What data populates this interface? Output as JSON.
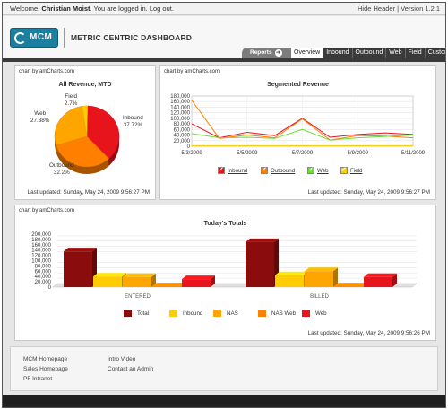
{
  "topbar": {
    "welcome_prefix": "Welcome,",
    "user_name": "Christian Moist",
    "welcome_suffix": ". You are logged in.",
    "logout": "Log out.",
    "hide_header": "Hide Header",
    "version": "Version 1.2.1"
  },
  "header": {
    "logo_text": "MCM",
    "title": "METRIC CENTRIC DASHBOARD",
    "reports_label": "Reports",
    "tabs": [
      "Overview",
      "Inbound",
      "Outbound",
      "Web",
      "Field",
      "Customer"
    ]
  },
  "panels": {
    "credit": "chart by amCharts.com",
    "updated1": "Last updated: Sunday, May 24, 2009 9:56:27 PM",
    "updated2": "Last updated: Sunday, May 24, 2009 9:56:27 PM",
    "updated3": "Last updated: Sunday, May 24, 2009 9:56:26 PM"
  },
  "colors": {
    "inbound": "#e8141c",
    "outbound": "#ff7f00",
    "web": "#66dd33",
    "field": "#ffcc00",
    "total": "#8b0c0c",
    "nas": "#ffa500"
  },
  "chart_data": [
    {
      "type": "pie",
      "title": "All Revenue, MTD",
      "slices": [
        {
          "label": "Inbound",
          "pct": "37.72%",
          "value": 37.72
        },
        {
          "label": "Outbound",
          "pct": "32.2%",
          "value": 32.2
        },
        {
          "label": "Web",
          "pct": "27.38%",
          "value": 27.38
        },
        {
          "label": "Field",
          "pct": "2.7%",
          "value": 2.7
        }
      ]
    },
    {
      "type": "line",
      "title": "Segmented Revenue",
      "x_ticks": [
        "5/3/2009",
        "5/5/2009",
        "5/7/2009",
        "5/9/2009",
        "5/11/2009"
      ],
      "y_ticks": [
        "180,000",
        "160,000",
        "140,000",
        "120,000",
        "100,000",
        "80,000",
        "60,000",
        "40,000",
        "20,000",
        "0"
      ],
      "ylim": [
        0,
        180000
      ],
      "x": [
        0,
        1,
        2,
        3,
        4,
        5,
        6,
        7,
        8
      ],
      "series": [
        {
          "name": "Inbound",
          "values": [
            80000,
            30000,
            50000,
            38000,
            100000,
            32000,
            42000,
            48000,
            42000
          ]
        },
        {
          "name": "Outbound",
          "values": [
            165000,
            28000,
            40000,
            30000,
            98000,
            22000,
            38000,
            36000,
            30000
          ]
        },
        {
          "name": "Web",
          "values": [
            45000,
            30000,
            32000,
            28000,
            60000,
            22000,
            30000,
            35000,
            40000
          ]
        },
        {
          "name": "Field",
          "values": [
            2000,
            2000,
            2000,
            2000,
            2000,
            2000,
            2000,
            2000,
            2000
          ]
        }
      ],
      "legend": [
        "Inbound",
        "Outbound",
        "Web",
        "Field"
      ]
    },
    {
      "type": "bar",
      "title": "Today's Totals",
      "categories": [
        "ENTERED",
        "BILLED"
      ],
      "y_ticks": [
        "200,000",
        "180,000",
        "160,000",
        "140,000",
        "120,000",
        "100,000",
        "80,000",
        "60,000",
        "40,000",
        "20,000",
        "0"
      ],
      "ylim": [
        0,
        200000
      ],
      "series": [
        {
          "name": "Total",
          "values": [
            135000,
            170000
          ]
        },
        {
          "name": "Inbound",
          "values": [
            40000,
            45000
          ]
        },
        {
          "name": "NAS",
          "values": [
            38000,
            60000
          ]
        },
        {
          "name": "NAS Web",
          "values": [
            3000,
            3000
          ]
        },
        {
          "name": "Web",
          "values": [
            30000,
            38000
          ]
        }
      ]
    }
  ],
  "footer": {
    "col1": [
      "MCM Homepage",
      "Sales Homepage",
      "PF Intranet"
    ],
    "col2": [
      "Intro Video",
      "Contact an Admin"
    ]
  }
}
